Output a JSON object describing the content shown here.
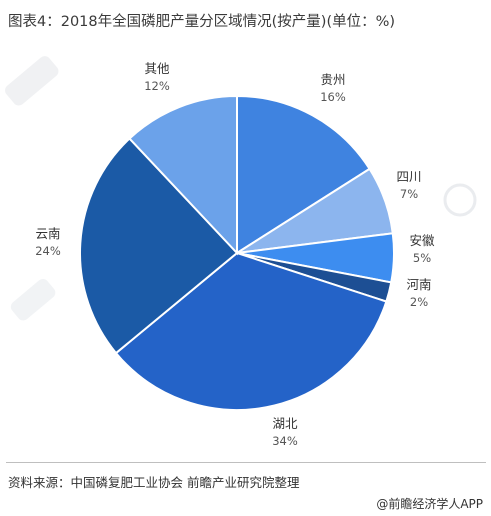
{
  "title": "图表4：2018年全国磷肥产量分区域情况(按产量)(单位：%)",
  "source": "资料来源：中国磷复肥工业协会 前瞻产业研究院整理",
  "brand": {
    "icon": "at-icon",
    "text": "@前瞻经济学人APP"
  },
  "chart_data": {
    "type": "pie",
    "title": "图表4：2018年全国磷肥产量分区域情况(按产量)(单位：%)",
    "unit": "%",
    "slices": [
      {
        "name": "贵州",
        "value": 16,
        "label": "16%",
        "color": "#3f83e0"
      },
      {
        "name": "四川",
        "value": 7,
        "label": "7%",
        "color": "#8cb5ee"
      },
      {
        "name": "安徽",
        "value": 5,
        "label": "5%",
        "color": "#3d8df0"
      },
      {
        "name": "河南",
        "value": 2,
        "label": "2%",
        "color": "#1d4f94"
      },
      {
        "name": "湖北",
        "value": 34,
        "label": "34%",
        "color": "#2463c8"
      },
      {
        "name": "云南",
        "value": 24,
        "label": "24%",
        "color": "#1b5aa6"
      },
      {
        "name": "其他",
        "value": 12,
        "label": "12%",
        "color": "#6ba2ea"
      }
    ]
  }
}
